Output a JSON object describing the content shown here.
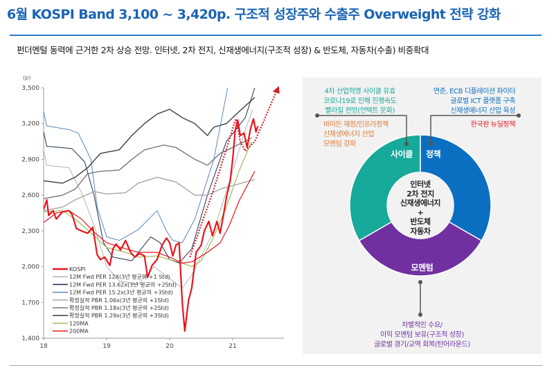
{
  "header": {
    "title": "6월 KOSPI Band 3,100 ~ 3,420p. 구조적 성장주와 수출주 Overweight 전략 강화",
    "subtitle": "펀더멘털 동력에 근거한 2차 상승 전망. 인터넷, 2차 전지, 신재생에너지(구조적 성장) & 반도체, 자동차(수출) 비중확대"
  },
  "chart_data": {
    "type": "line",
    "yunit": "(p)",
    "ylim": [
      1400,
      3500
    ],
    "yticks": [
      "1,400",
      "1,700",
      "2,000",
      "2,300",
      "2,600",
      "2,900",
      "3,200",
      "3,500"
    ],
    "ytick_values": [
      1400,
      1700,
      2000,
      2300,
      2600,
      2900,
      3200,
      3500
    ],
    "xlim": [
      18,
      21.8
    ],
    "xticks": [
      "18",
      "19",
      "20",
      "21"
    ],
    "xtick_values": [
      18,
      19,
      20,
      21
    ],
    "legend_position": "bottom-left",
    "series": [
      {
        "name": "KOSPI",
        "color": "#e8141c",
        "width": 2.2,
        "points": [
          [
            18.0,
            2480
          ],
          [
            18.05,
            2560
          ],
          [
            18.08,
            2430
          ],
          [
            18.15,
            2470
          ],
          [
            18.2,
            2400
          ],
          [
            18.3,
            2460
          ],
          [
            18.4,
            2470
          ],
          [
            18.45,
            2440
          ],
          [
            18.52,
            2320
          ],
          [
            18.6,
            2300
          ],
          [
            18.7,
            2280
          ],
          [
            18.78,
            2330
          ],
          [
            18.85,
            2100
          ],
          [
            18.9,
            2060
          ],
          [
            18.97,
            2080
          ],
          [
            19.05,
            2010
          ],
          [
            19.1,
            2150
          ],
          [
            19.15,
            2190
          ],
          [
            19.22,
            2140
          ],
          [
            19.3,
            2220
          ],
          [
            19.38,
            2120
          ],
          [
            19.45,
            2080
          ],
          [
            19.52,
            2110
          ],
          [
            19.6,
            2090
          ],
          [
            19.65,
            1910
          ],
          [
            19.72,
            2010
          ],
          [
            19.8,
            2060
          ],
          [
            19.88,
            2180
          ],
          [
            19.95,
            2240
          ],
          [
            20.0,
            2200
          ],
          [
            20.05,
            2090
          ],
          [
            20.1,
            2180
          ],
          [
            20.15,
            2200
          ],
          [
            20.2,
            1700
          ],
          [
            20.24,
            1460
          ],
          [
            20.3,
            1720
          ],
          [
            20.35,
            1820
          ],
          [
            20.42,
            2120
          ],
          [
            20.5,
            2180
          ],
          [
            20.55,
            2300
          ],
          [
            20.62,
            2380
          ],
          [
            20.68,
            2260
          ],
          [
            20.75,
            2380
          ],
          [
            20.8,
            2280
          ],
          [
            20.85,
            2420
          ],
          [
            20.9,
            2580
          ],
          [
            20.96,
            2720
          ],
          [
            21.0,
            2900
          ],
          [
            21.04,
            3140
          ],
          [
            21.08,
            3230
          ],
          [
            21.12,
            3100
          ],
          [
            21.18,
            3120
          ],
          [
            21.23,
            3000
          ],
          [
            21.28,
            3150
          ],
          [
            21.33,
            3240
          ],
          [
            21.37,
            3130
          ],
          [
            21.4,
            3180
          ]
        ]
      },
      {
        "name": "12M Fwd PER 12X(3년 평균의 +1 Std)",
        "color": "#b4b4b4",
        "width": 1,
        "points": [
          [
            18.0,
            2980
          ],
          [
            18.05,
            2850
          ],
          [
            18.4,
            2830
          ],
          [
            18.6,
            2620
          ],
          [
            18.8,
            2350
          ],
          [
            19.0,
            2000
          ],
          [
            19.2,
            1880
          ],
          [
            19.5,
            1850
          ],
          [
            19.75,
            2000
          ],
          [
            20.0,
            1900
          ],
          [
            20.2,
            1820
          ],
          [
            20.35,
            1930
          ],
          [
            20.7,
            2300
          ],
          [
            21.0,
            2800
          ],
          [
            21.2,
            3150
          ],
          [
            21.32,
            3320
          ]
        ]
      },
      {
        "name": "12M Fwd PER 13.62x(3년 평균의 +2Std)",
        "color": "#1e2e4a",
        "width": 1,
        "points": [
          [
            18.0,
            3130
          ],
          [
            18.05,
            3010
          ],
          [
            18.45,
            2990
          ],
          [
            18.65,
            2880
          ],
          [
            18.8,
            2600
          ],
          [
            18.95,
            2200
          ],
          [
            19.1,
            2080
          ],
          [
            19.4,
            2050
          ],
          [
            19.7,
            2250
          ],
          [
            19.85,
            2200
          ],
          [
            20.0,
            2060
          ],
          [
            20.15,
            2030
          ],
          [
            20.35,
            2150
          ],
          [
            20.6,
            2600
          ],
          [
            20.9,
            3050
          ],
          [
            21.2,
            3250
          ],
          [
            21.35,
            3500
          ]
        ]
      },
      {
        "name": "12M Fwd PER 15.2x(3년 평균의 +3Std)",
        "color": "#5b86bd",
        "width": 1,
        "points": [
          [
            18.0,
            3300
          ],
          [
            18.05,
            3180
          ],
          [
            18.4,
            3150
          ],
          [
            18.55,
            3120
          ],
          [
            18.75,
            2900
          ],
          [
            18.85,
            2500
          ],
          [
            19.0,
            2250
          ],
          [
            19.2,
            2220
          ],
          [
            19.5,
            2310
          ],
          [
            19.8,
            2470
          ],
          [
            19.95,
            2300
          ],
          [
            20.05,
            2220
          ],
          [
            20.2,
            2200
          ],
          [
            20.4,
            2400
          ],
          [
            20.7,
            2900
          ],
          [
            20.92,
            3500
          ]
        ]
      },
      {
        "name": "확정실적 PBR 1.06x(3년 평균의 +1Std)",
        "color": "#a6a6a6",
        "width": 1.4,
        "points": [
          [
            18.0,
            2470
          ],
          [
            18.3,
            2500
          ],
          [
            18.5,
            2560
          ],
          [
            18.8,
            2630
          ],
          [
            19.0,
            2610
          ],
          [
            19.3,
            2620
          ],
          [
            19.5,
            2700
          ],
          [
            19.8,
            2750
          ],
          [
            20.1,
            2710
          ],
          [
            20.4,
            2600
          ],
          [
            20.6,
            2600
          ],
          [
            20.8,
            2650
          ],
          [
            21.0,
            2680
          ],
          [
            21.35,
            2730
          ]
        ]
      },
      {
        "name": "확정실적 PBR 1.18x(3년 평균의 +2Std)",
        "color": "#777777",
        "width": 1.4,
        "points": [
          [
            18.0,
            2570
          ],
          [
            18.3,
            2600
          ],
          [
            18.5,
            2650
          ],
          [
            18.7,
            2780
          ],
          [
            18.9,
            2800
          ],
          [
            19.2,
            2810
          ],
          [
            19.4,
            2900
          ],
          [
            19.6,
            2980
          ],
          [
            19.9,
            3020
          ],
          [
            20.1,
            3000
          ],
          [
            20.4,
            2900
          ],
          [
            20.6,
            2850
          ],
          [
            20.8,
            2950
          ],
          [
            21.0,
            3000
          ],
          [
            21.3,
            3080
          ]
        ]
      },
      {
        "name": "확정실적 PBR 1.29x(3년 평균의 +3Std)",
        "color": "#3c3c3c",
        "width": 1.4,
        "points": [
          [
            18.0,
            2720
          ],
          [
            18.3,
            2700
          ],
          [
            18.5,
            2750
          ],
          [
            18.7,
            2830
          ],
          [
            18.9,
            2950
          ],
          [
            19.2,
            2980
          ],
          [
            19.4,
            3100
          ],
          [
            19.6,
            3200
          ],
          [
            19.8,
            3280
          ],
          [
            20.0,
            3320
          ],
          [
            20.2,
            3250
          ],
          [
            20.4,
            3200
          ],
          [
            20.6,
            3100
          ],
          [
            20.7,
            3170
          ],
          [
            20.9,
            3200
          ],
          [
            21.1,
            3300
          ],
          [
            21.35,
            3420
          ]
        ]
      },
      {
        "name": "120MA",
        "color": "#9cbb59",
        "width": 1.2,
        "points": [
          [
            18.0,
            2460
          ],
          [
            18.3,
            2470
          ],
          [
            18.5,
            2400
          ],
          [
            18.8,
            2260
          ],
          [
            19.0,
            2160
          ],
          [
            19.3,
            2120
          ],
          [
            19.5,
            2080
          ],
          [
            19.8,
            2090
          ],
          [
            20.0,
            2060
          ],
          [
            20.2,
            2030
          ],
          [
            20.35,
            2000
          ],
          [
            20.5,
            2050
          ],
          [
            20.7,
            2250
          ],
          [
            20.9,
            2500
          ],
          [
            21.1,
            2800
          ],
          [
            21.3,
            3050
          ]
        ]
      },
      {
        "name": "200MA",
        "color": "#e8141c",
        "width": 1.2,
        "points": [
          [
            18.0,
            2370
          ],
          [
            18.2,
            2450
          ],
          [
            18.4,
            2470
          ],
          [
            18.6,
            2400
          ],
          [
            18.8,
            2290
          ],
          [
            19.0,
            2200
          ],
          [
            19.3,
            2150
          ],
          [
            19.5,
            2120
          ],
          [
            19.8,
            2120
          ],
          [
            20.0,
            2080
          ],
          [
            20.2,
            2030
          ],
          [
            20.35,
            2040
          ],
          [
            20.6,
            2120
          ],
          [
            20.8,
            2200
          ],
          [
            20.95,
            2350
          ],
          [
            21.1,
            2550
          ],
          [
            21.35,
            2800
          ]
        ]
      }
    ],
    "annotation_arrow": {
      "color": "#d0202a",
      "style": "dotted",
      "points": [
        [
          20.32,
          2080
        ],
        [
          20.7,
          2650
        ],
        [
          21.05,
          3240
        ],
        [
          21.12,
          3050
        ],
        [
          21.2,
          2970
        ],
        [
          21.35,
          3050
        ],
        [
          21.5,
          3230
        ],
        [
          21.7,
          3480
        ]
      ]
    }
  },
  "donut": {
    "center_lines": [
      "인터넷",
      "2차 전지",
      "신재생에너지",
      "+",
      "반도체",
      "자동차"
    ],
    "segments": [
      {
        "label": "사이클",
        "color": "#17a99a"
      },
      {
        "label": "정책",
        "color": "#0b6fc1"
      },
      {
        "label": "모멘텀",
        "color": "#7030a0"
      }
    ],
    "cycle_notes_top": [
      "4차 산업혁명 사이클 유효",
      "코로나19로 인해 진행속도",
      "빨라질 전망(언택트 문화)"
    ],
    "cycle_notes_bottom": [
      "바이든 재정/인프라정책",
      "신재생에너지 산업",
      "모멘텀 강화"
    ],
    "policy_notes_top": [
      "연준, ECB 디플레이션 파이터",
      "글로벌 ICT 플랫폼 구축",
      "신재생에너지 산업 육성"
    ],
    "policy_notes_bottom": [
      "한국판 뉴딜정책"
    ],
    "momentum_notes": [
      "차별적인 수요/",
      "이익 모멘텀 보유(구조적 성장)",
      "글로벌 경기/교역 회복(턴어라운드)"
    ],
    "colors": {
      "cycle_text": "#17a99a",
      "orange_text": "#e07b39",
      "policy_text": "#0b6fc1",
      "red_text": "#e8141c",
      "momentum_text": "#7030a0",
      "connector": "#555555"
    }
  }
}
